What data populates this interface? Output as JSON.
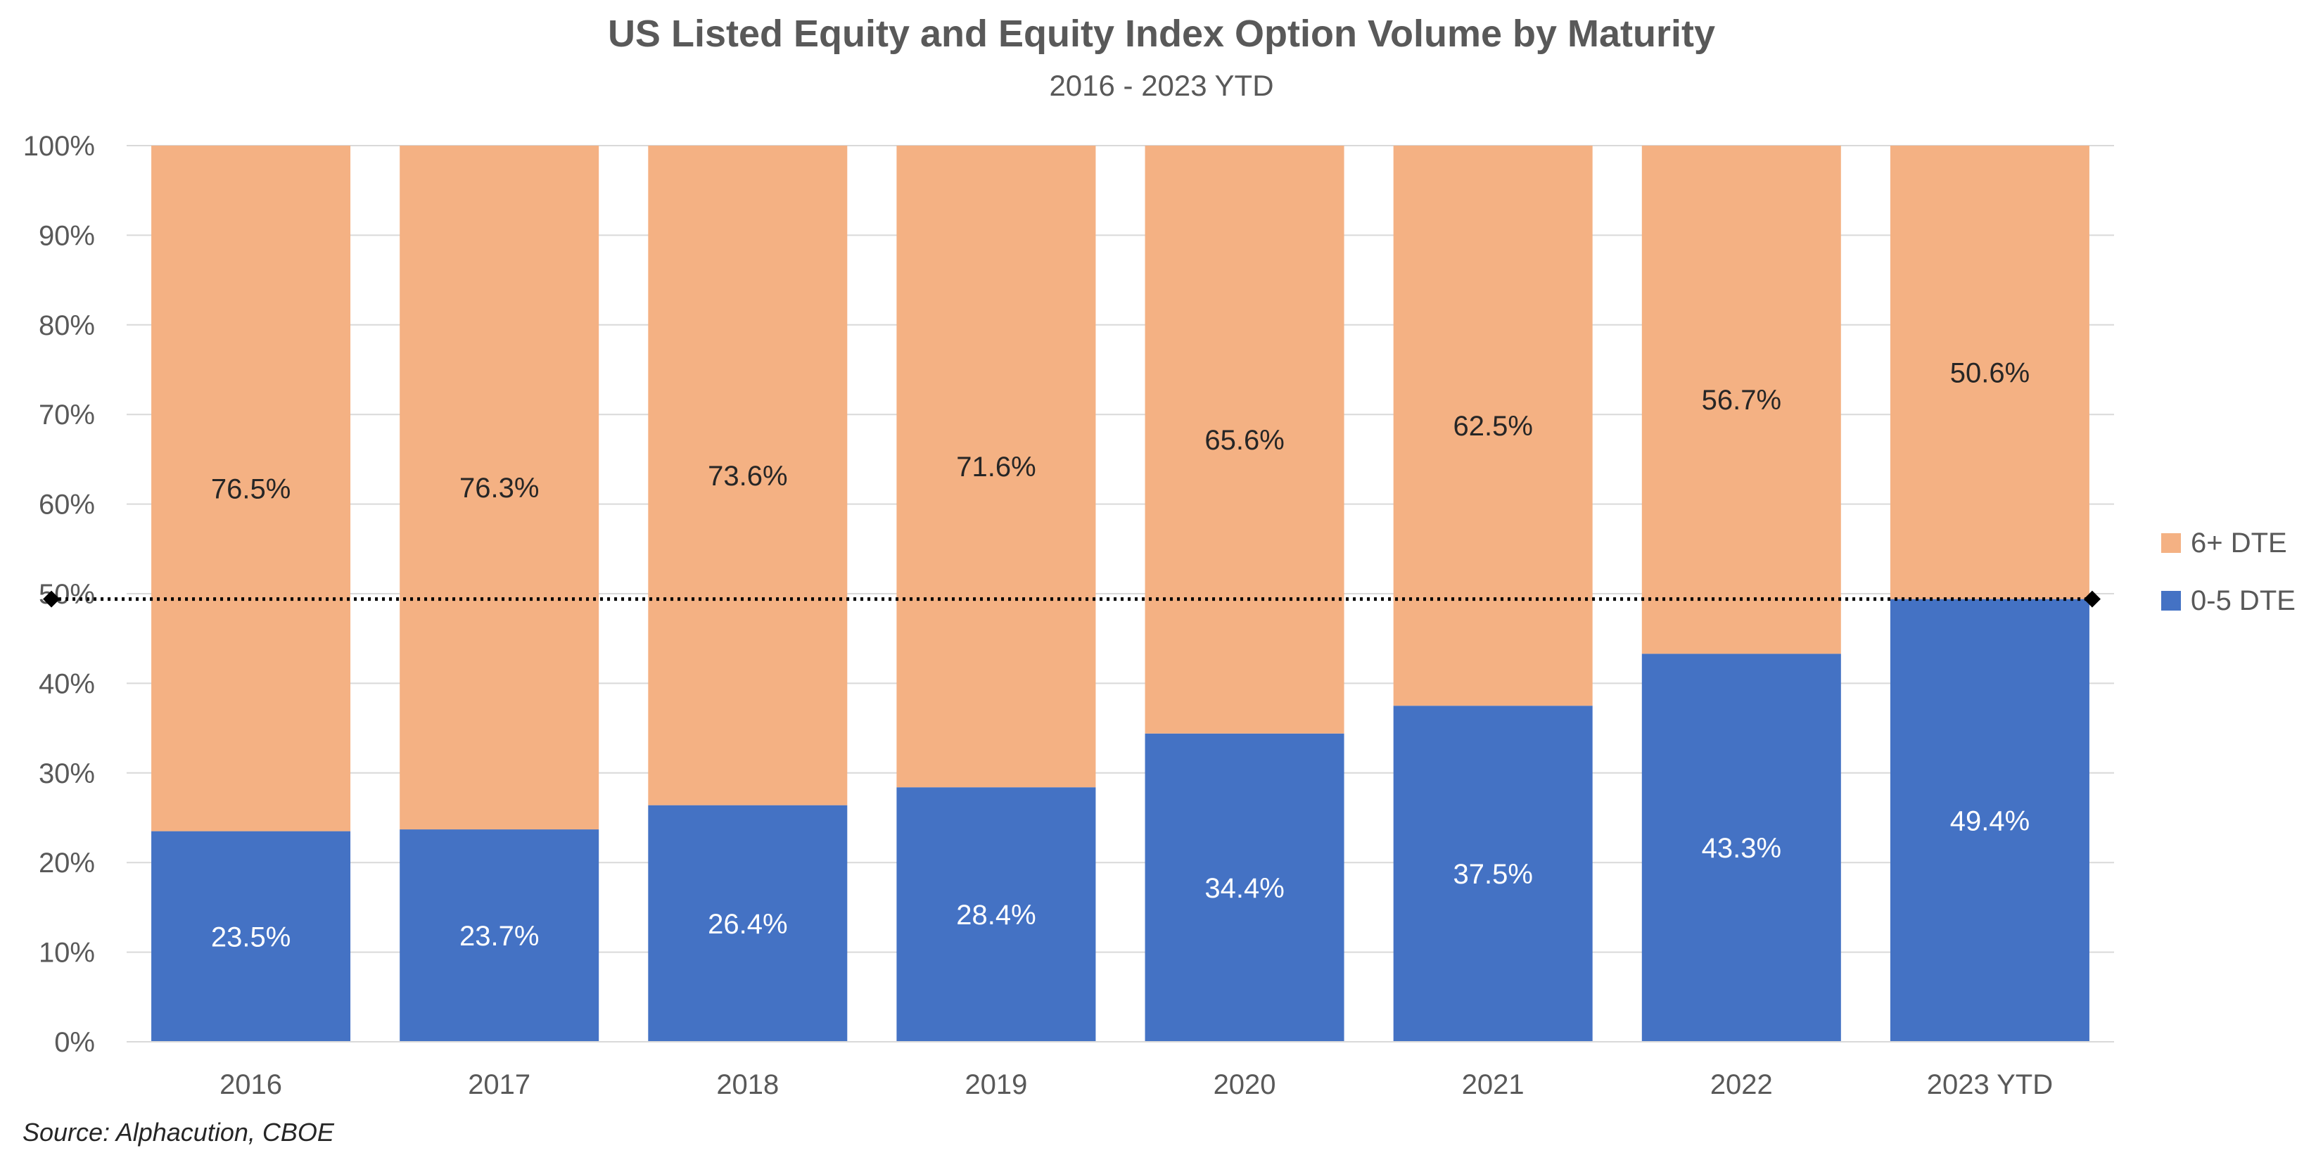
{
  "chart_data": {
    "type": "bar",
    "stacked": true,
    "title": "US Listed Equity and Equity Index Option Volume by Maturity",
    "subtitle": "2016 - 2023 YTD",
    "categories": [
      "2016",
      "2017",
      "2018",
      "2019",
      "2020",
      "2021",
      "2022",
      "2023 YTD"
    ],
    "series": [
      {
        "name": "0-5 DTE",
        "color": "#4472C4",
        "label_color": "#FFFFFF",
        "values": [
          23.5,
          23.7,
          26.4,
          28.4,
          34.4,
          37.5,
          43.3,
          49.4
        ],
        "labels": [
          "23.5%",
          "23.7%",
          "26.4%",
          "28.4%",
          "34.4%",
          "37.5%",
          "43.3%",
          "49.4%"
        ]
      },
      {
        "name": "6+ DTE",
        "color": "#F4B183",
        "label_color": "#262626",
        "values": [
          76.5,
          76.3,
          73.6,
          71.6,
          65.6,
          62.5,
          56.7,
          50.6
        ],
        "labels": [
          "76.5%",
          "76.3%",
          "73.6%",
          "71.6%",
          "65.6%",
          "62.5%",
          "56.7%",
          "50.6%"
        ]
      }
    ],
    "reference_line": {
      "value": 49.4,
      "style": "dotted",
      "color": "#000000",
      "marker": "diamond"
    },
    "y_ticks": [
      "0%",
      "10%",
      "20%",
      "30%",
      "40%",
      "50%",
      "60%",
      "70%",
      "80%",
      "90%",
      "100%"
    ],
    "ylim": [
      0,
      100
    ],
    "xlabel": "",
    "ylabel": "",
    "grid": true,
    "legend_position": "right",
    "legend": [
      {
        "name": "6+ DTE",
        "color": "#F4B183"
      },
      {
        "name": "0-5 DTE",
        "color": "#4472C4"
      }
    ]
  },
  "source_note": "Source: Alphacution, CBOE"
}
